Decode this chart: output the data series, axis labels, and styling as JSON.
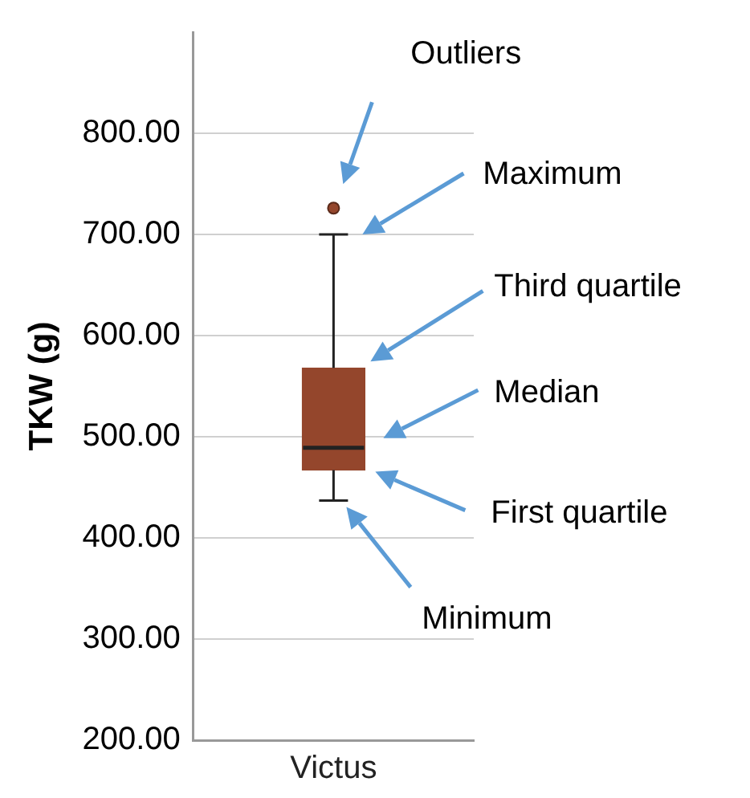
{
  "chart_data": {
    "type": "box",
    "ylabel": "TKW (g)",
    "categories": [
      "Victus"
    ],
    "boxes": [
      {
        "low": 437,
        "q1": 467,
        "median": 489,
        "q3": 568,
        "high": 700,
        "outliers": [
          726
        ]
      }
    ],
    "color": "#94462c",
    "ylim": [
      200,
      900
    ],
    "yticks": [
      {
        "value": 200,
        "label": "200.00"
      },
      {
        "value": 300,
        "label": "300.00"
      },
      {
        "value": 400,
        "label": "400.00"
      },
      {
        "value": 500,
        "label": "500.00"
      },
      {
        "value": 600,
        "label": "600.00"
      },
      {
        "value": 700,
        "label": "700.00"
      },
      {
        "value": 800,
        "label": "800.00"
      }
    ],
    "grid": "y",
    "legend": false,
    "marker": "circle",
    "annotations": [
      "Outliers",
      "Maximum",
      "Third quartile",
      "Median",
      "First quartile",
      "Minimum"
    ]
  }
}
